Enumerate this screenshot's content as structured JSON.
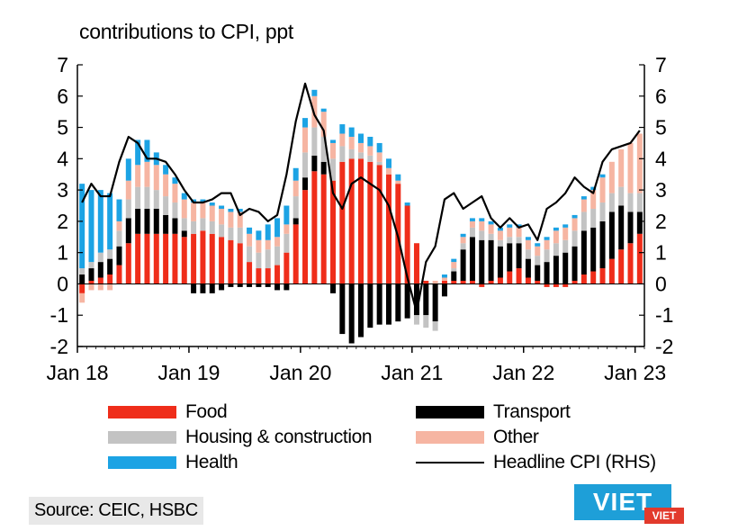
{
  "chart_data": {
    "type": "bar",
    "stacked": true,
    "title": "contributions to CPI, ppt",
    "source": "Source: CEIC, HSBC",
    "ylim": [
      -2,
      7
    ],
    "yticks": [
      -2,
      -1,
      0,
      1,
      2,
      3,
      4,
      5,
      6,
      7
    ],
    "rhs_ylim": [
      -2,
      7
    ],
    "x_tick_labels": [
      "Jan 18",
      "Jan 19",
      "Jan 20",
      "Jan 21",
      "Jan 22",
      "Jan 23"
    ],
    "x_tick_indices": [
      0,
      12,
      24,
      36,
      48,
      60
    ],
    "months": [
      "2018-01",
      "2018-02",
      "2018-03",
      "2018-04",
      "2018-05",
      "2018-06",
      "2018-07",
      "2018-08",
      "2018-09",
      "2018-10",
      "2018-11",
      "2018-12",
      "2019-01",
      "2019-02",
      "2019-03",
      "2019-04",
      "2019-05",
      "2019-06",
      "2019-07",
      "2019-08",
      "2019-09",
      "2019-10",
      "2019-11",
      "2019-12",
      "2020-01",
      "2020-02",
      "2020-03",
      "2020-04",
      "2020-05",
      "2020-06",
      "2020-07",
      "2020-08",
      "2020-09",
      "2020-10",
      "2020-11",
      "2020-12",
      "2021-01",
      "2021-02",
      "2021-03",
      "2021-04",
      "2021-05",
      "2021-06",
      "2021-07",
      "2021-08",
      "2021-09",
      "2021-10",
      "2021-11",
      "2021-12",
      "2022-01",
      "2022-02",
      "2022-03",
      "2022-04",
      "2022-05",
      "2022-06",
      "2022-07",
      "2022-08",
      "2022-09",
      "2022-10",
      "2022-11",
      "2022-12",
      "2023-01"
    ],
    "series": [
      {
        "name": "Food",
        "color": "#ef2d1a",
        "values": [
          -0.3,
          0.1,
          0.2,
          0.3,
          0.6,
          1.3,
          1.6,
          1.6,
          1.6,
          1.6,
          1.6,
          1.5,
          1.6,
          1.7,
          1.6,
          1.5,
          1.4,
          1.3,
          0.7,
          0.5,
          0.5,
          0.6,
          1.0,
          1.9,
          3.0,
          3.6,
          3.5,
          3.3,
          3.9,
          4.0,
          4.0,
          3.9,
          3.8,
          3.5,
          3.2,
          2.5,
          1.3,
          0.1,
          0.0,
          0.1,
          0.1,
          0.1,
          0.1,
          -0.1,
          0.1,
          0.2,
          0.4,
          0.5,
          0.2,
          0.1,
          -0.1,
          -0.1,
          -0.1,
          0.1,
          0.3,
          0.4,
          0.5,
          0.8,
          1.1,
          1.3,
          1.6
        ]
      },
      {
        "name": "Transport",
        "color": "#000000",
        "values": [
          0.3,
          0.4,
          0.5,
          0.5,
          0.6,
          0.8,
          0.8,
          0.8,
          0.8,
          0.6,
          0.5,
          0.2,
          -0.3,
          -0.3,
          -0.3,
          -0.2,
          -0.1,
          -0.1,
          -0.1,
          -0.1,
          -0.1,
          -0.2,
          -0.2,
          0.2,
          0.4,
          0.5,
          0.4,
          -0.3,
          -1.6,
          -1.9,
          -1.7,
          -1.4,
          -1.3,
          -1.3,
          -1.2,
          -1.1,
          -1.0,
          -1.0,
          -1.2,
          -0.4,
          0.3,
          1.0,
          1.4,
          1.4,
          1.3,
          1.0,
          0.9,
          0.8,
          0.6,
          0.5,
          0.7,
          0.9,
          1.0,
          1.1,
          1.4,
          1.4,
          1.5,
          1.5,
          1.4,
          1.0,
          0.7
        ]
      },
      {
        "name": "Housing & construction",
        "color": "#c3c3c3",
        "values": [
          0.2,
          0.2,
          0.3,
          0.3,
          0.5,
          0.6,
          0.7,
          0.7,
          0.6,
          0.6,
          0.5,
          0.4,
          0.4,
          0.4,
          0.4,
          0.4,
          0.4,
          0.5,
          0.5,
          0.5,
          0.6,
          0.6,
          0.6,
          0.7,
          0.8,
          0.9,
          0.8,
          0.7,
          0.5,
          0.3,
          0.2,
          0.2,
          0.1,
          0.0,
          0.0,
          0.0,
          -0.3,
          -0.4,
          -0.3,
          0.0,
          0.1,
          0.2,
          0.3,
          0.3,
          0.2,
          0.2,
          0.2,
          0.2,
          0.3,
          0.3,
          0.4,
          0.4,
          0.4,
          0.5,
          0.6,
          0.6,
          0.6,
          0.6,
          0.6,
          0.6,
          0.6
        ]
      },
      {
        "name": "Other",
        "color": "#f6b5a2",
        "values": [
          -0.3,
          -0.2,
          -0.2,
          -0.2,
          0.3,
          0.6,
          0.7,
          0.8,
          0.8,
          0.7,
          0.6,
          0.6,
          0.6,
          0.5,
          0.5,
          0.5,
          0.5,
          0.5,
          0.4,
          0.4,
          0.3,
          0.3,
          0.3,
          0.5,
          0.8,
          1.0,
          0.8,
          0.5,
          0.4,
          0.4,
          0.3,
          0.3,
          0.3,
          0.2,
          0.1,
          0.0,
          0.0,
          0.0,
          0.1,
          0.1,
          0.2,
          0.2,
          0.2,
          0.3,
          0.3,
          0.3,
          0.3,
          0.3,
          0.3,
          0.3,
          0.3,
          0.4,
          0.4,
          0.4,
          0.4,
          0.6,
          0.8,
          1.0,
          1.2,
          1.6,
          1.9
        ]
      },
      {
        "name": "Health",
        "color": "#1ca3e4",
        "values": [
          2.7,
          2.3,
          2.0,
          1.8,
          0.7,
          0.7,
          0.8,
          0.7,
          0.4,
          0.3,
          0.2,
          0.2,
          0.1,
          0.1,
          0.1,
          0.1,
          0.1,
          0.1,
          0.2,
          0.3,
          0.5,
          0.6,
          0.6,
          0.4,
          0.3,
          0.2,
          0.1,
          0.1,
          0.3,
          0.3,
          0.3,
          0.3,
          0.3,
          0.3,
          0.2,
          0.1,
          0.0,
          0.0,
          0.0,
          0.1,
          0.1,
          0.1,
          0.1,
          0.1,
          0.1,
          0.1,
          0.1,
          0.1,
          0.1,
          0.1,
          0.1,
          0.1,
          0.1,
          0.1,
          0.1,
          0.1,
          0.1,
          0.0,
          0.0,
          0.0,
          0.0
        ]
      }
    ],
    "line": {
      "name": "Headline CPI (RHS)",
      "color": "#000000",
      "values": [
        2.6,
        3.2,
        2.8,
        2.8,
        3.9,
        4.7,
        4.5,
        4.0,
        4.0,
        3.9,
        3.5,
        3.0,
        2.6,
        2.6,
        2.7,
        2.9,
        2.9,
        2.2,
        2.4,
        2.3,
        2.0,
        2.2,
        3.5,
        5.2,
        6.4,
        5.4,
        4.9,
        2.9,
        2.4,
        3.2,
        3.4,
        3.2,
        3.0,
        2.5,
        1.5,
        0.2,
        -0.9,
        0.7,
        1.2,
        2.7,
        2.9,
        2.4,
        2.6,
        2.8,
        2.1,
        1.8,
        2.1,
        1.8,
        1.9,
        1.4,
        2.4,
        2.6,
        2.9,
        3.4,
        3.1,
        2.9,
        3.9,
        4.3,
        4.4,
        4.5,
        4.9
      ]
    },
    "legend": [
      {
        "label": "Food",
        "kind": "bar",
        "color": "#ef2d1a"
      },
      {
        "label": "Transport",
        "kind": "bar",
        "color": "#000000"
      },
      {
        "label": "Housing & construction",
        "kind": "bar",
        "color": "#c3c3c3"
      },
      {
        "label": "Other",
        "kind": "bar",
        "color": "#f6b5a2"
      },
      {
        "label": "Health",
        "kind": "bar",
        "color": "#1ca3e4"
      },
      {
        "label": "Headline CPI (RHS)",
        "kind": "line",
        "color": "#000000"
      }
    ]
  },
  "logo": {
    "name": "VIET",
    "tag": "VIET"
  }
}
